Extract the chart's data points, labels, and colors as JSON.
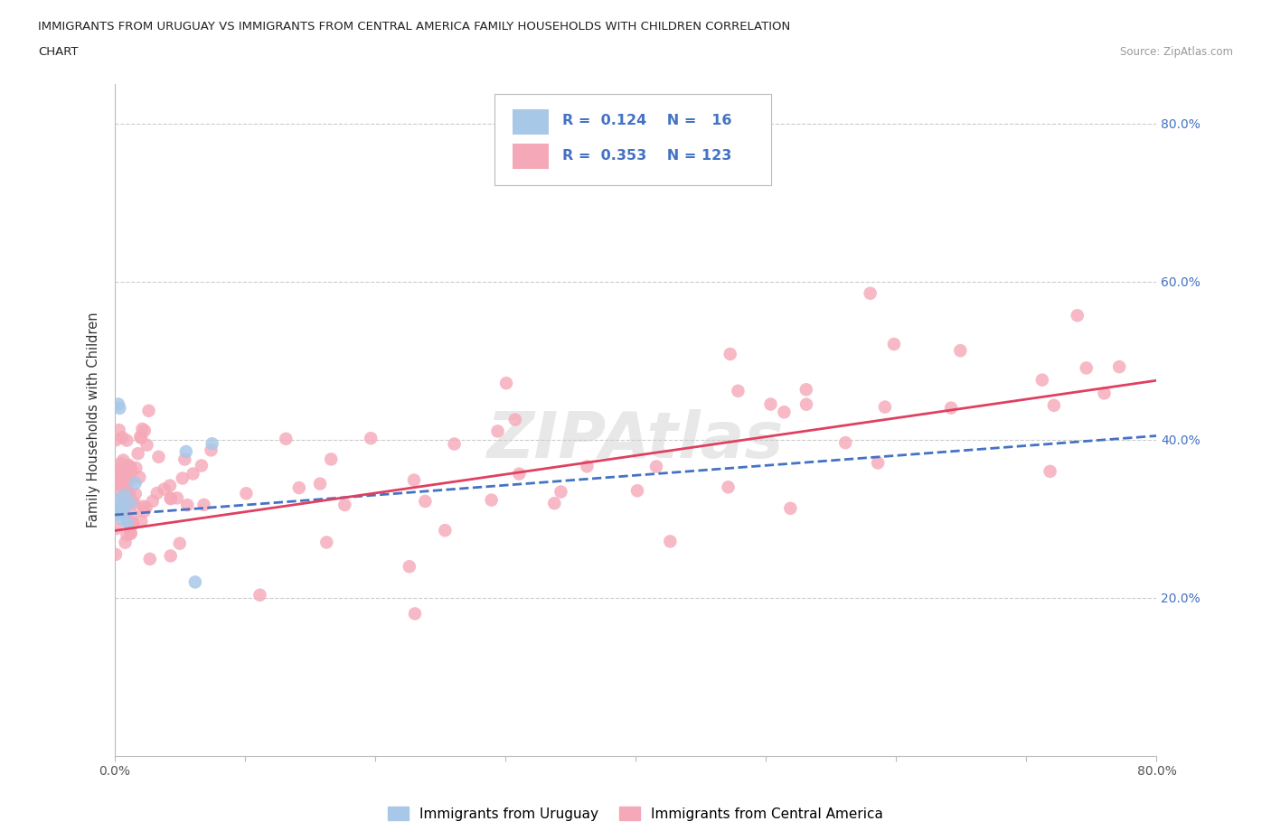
{
  "title_line1": "IMMIGRANTS FROM URUGUAY VS IMMIGRANTS FROM CENTRAL AMERICA FAMILY HOUSEHOLDS WITH CHILDREN CORRELATION",
  "title_line2": "CHART",
  "source": "Source: ZipAtlas.com",
  "ylabel": "Family Households with Children",
  "xlim": [
    0.0,
    0.8
  ],
  "ylim": [
    0.0,
    0.85
  ],
  "uruguay_color": "#a8c8e8",
  "central_america_color": "#f5a8b8",
  "uruguay_line_color": "#4472c4",
  "central_america_line_color": "#e04060",
  "legend_R_uruguay": "0.124",
  "legend_N_uruguay": "16",
  "legend_R_central": "0.353",
  "legend_N_central": "123",
  "legend_label_uruguay": "Immigrants from Uruguay",
  "legend_label_central": "Immigrants from Central America",
  "uruguay_line_x0": 0.0,
  "uruguay_line_y0": 0.305,
  "uruguay_line_x1": 0.8,
  "uruguay_line_y1": 0.405,
  "ca_line_x0": 0.0,
  "ca_line_y0": 0.285,
  "ca_line_x1": 0.8,
  "ca_line_y1": 0.475
}
